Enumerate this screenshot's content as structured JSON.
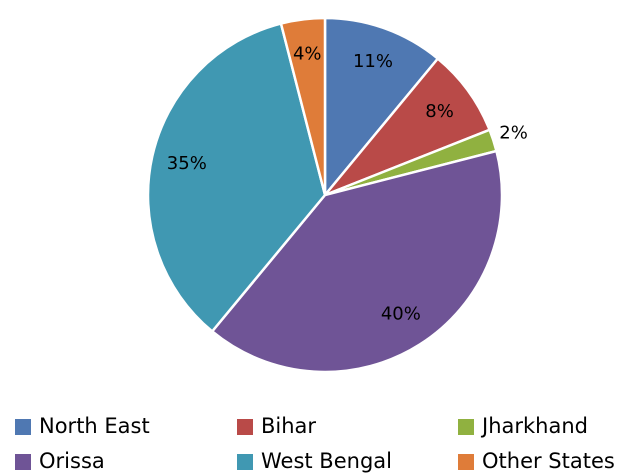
{
  "chart_data": {
    "type": "pie",
    "categories": [
      "North East",
      "Bihar",
      "Jharkhand",
      "Orissa",
      "West Bengal",
      "Other States"
    ],
    "values": [
      11,
      8,
      2,
      40,
      35,
      4
    ],
    "value_labels": [
      "11%",
      "8%",
      "2%",
      "40%",
      "35%",
      "4%"
    ],
    "colors": [
      "#4f78b2",
      "#b94a48",
      "#90b140",
      "#6f5496",
      "#4098b2",
      "#df7c39"
    ],
    "legend": "bottom"
  }
}
